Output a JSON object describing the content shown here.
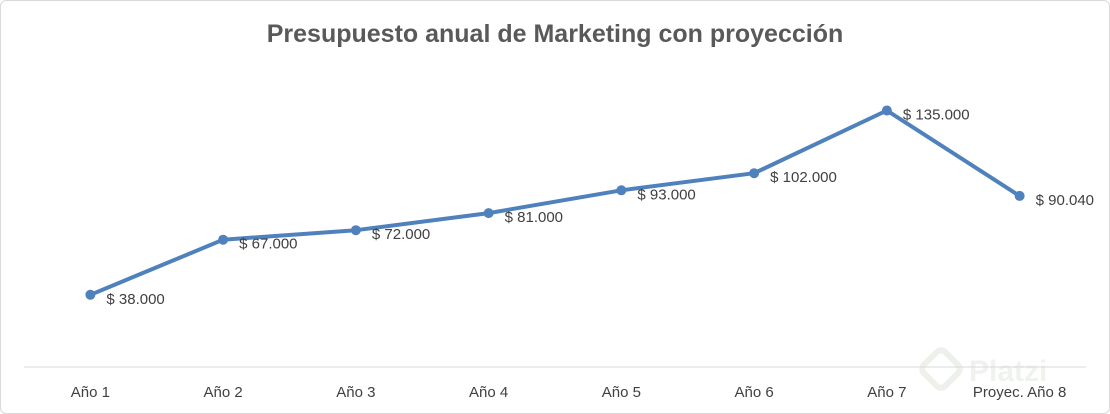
{
  "chart_data": {
    "type": "line",
    "title": "Presupuesto anual de Marketing con proyección",
    "categories": [
      "Año 1",
      "Año 2",
      "Año 3",
      "Año 4",
      "Año 5",
      "Año 6",
      "Año 7",
      "Proyec. Año 8"
    ],
    "values": [
      38000,
      67000,
      72000,
      81000,
      93000,
      102000,
      135000,
      90040
    ],
    "data_labels": [
      "$ 38.000",
      "$ 67.000",
      "$ 72.000",
      "$ 81.000",
      "$ 93.000",
      "$ 102.000",
      "$ 135.000",
      "$ 90.040"
    ],
    "xlabel": "",
    "ylabel": "",
    "ylim": [
      0,
      140000
    ],
    "grid": false,
    "legend": "none",
    "line_color": "#4f81bd"
  },
  "watermark": {
    "text": "Platzi",
    "icon": "platzi-logo-icon"
  }
}
